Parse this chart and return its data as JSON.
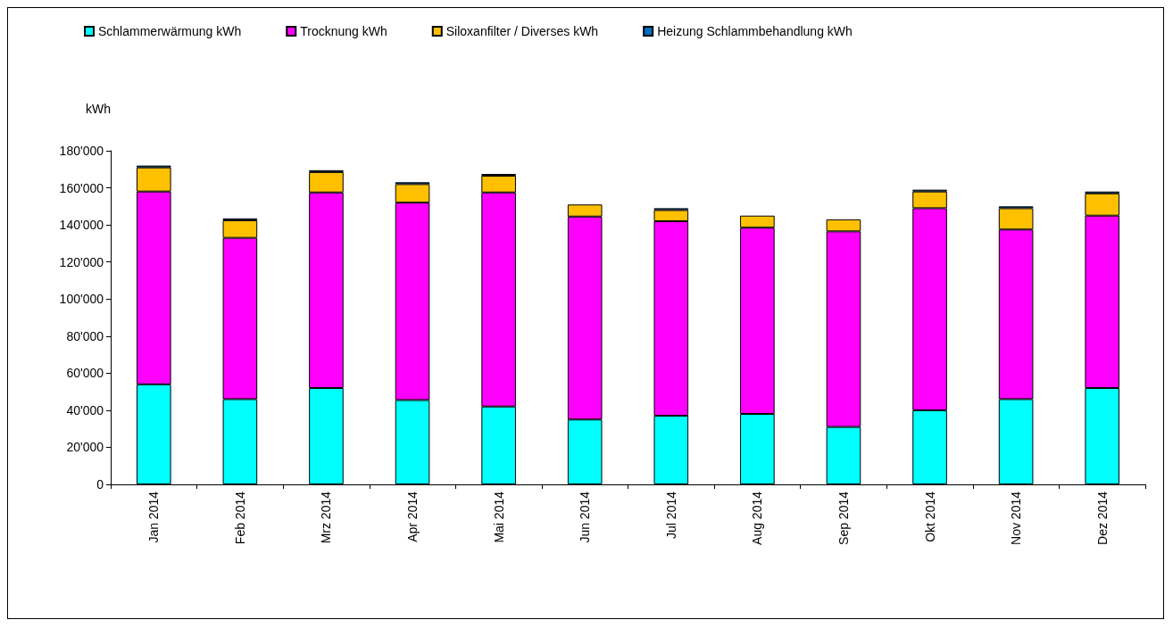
{
  "chart_data": {
    "type": "bar",
    "stacked": true,
    "ylabel": "kWh",
    "legend": "top",
    "grid": false,
    "categories": [
      "Jan 2014",
      "Feb 2014",
      "Mrz 2014",
      "Apr 2014",
      "Mai 2014",
      "Jun 2014",
      "Jul 2014",
      "Aug 2014",
      "Sep 2014",
      "Okt 2014",
      "Nov 2014",
      "Dez 2014"
    ],
    "series": [
      {
        "name": "Schlammerwärmung kWh",
        "color": "#00ffff",
        "values": [
          54000,
          46000,
          52000,
          45500,
          42000,
          35000,
          37000,
          38000,
          31000,
          40000,
          46000,
          52000
        ]
      },
      {
        "name": "Trocknung kWh",
        "color": "#ff00ff",
        "values": [
          104000,
          87000,
          105500,
          106500,
          115500,
          109500,
          105000,
          100500,
          105500,
          109000,
          91500,
          93000
        ]
      },
      {
        "name": "Siloxanfilter / Diverses kWh",
        "color": "#ffc000",
        "values": [
          13000,
          9500,
          11000,
          10000,
          9000,
          6500,
          6000,
          6500,
          6500,
          9000,
          11500,
          12000
        ]
      },
      {
        "name": "Heizung Schlammbehandlung kWh",
        "color": "#0070c0",
        "values": [
          1000,
          1000,
          1000,
          1000,
          1000,
          0,
          1000,
          0,
          0,
          1000,
          1000,
          1000
        ]
      }
    ],
    "ylim": [
      0,
      180000
    ],
    "yticks": [
      {
        "value": 0,
        "label": "0"
      },
      {
        "value": 20000,
        "label": "20'000"
      },
      {
        "value": 40000,
        "label": "40'000"
      },
      {
        "value": 60000,
        "label": "60'000"
      },
      {
        "value": 80000,
        "label": "80'000"
      },
      {
        "value": 100000,
        "label": "100'000"
      },
      {
        "value": 120000,
        "label": "120'000"
      },
      {
        "value": 140000,
        "label": "140'000"
      },
      {
        "value": 160000,
        "label": "160'000"
      },
      {
        "value": 180000,
        "label": "180'000"
      }
    ]
  }
}
